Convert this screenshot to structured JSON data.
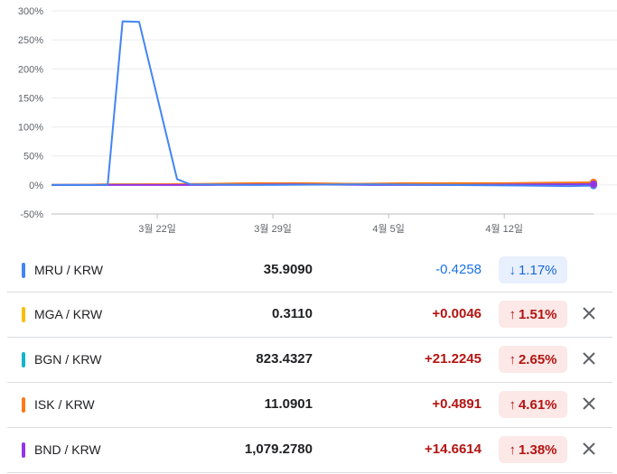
{
  "chart_data": {
    "type": "line",
    "y_ticks": [
      "300%",
      "250%",
      "200%",
      "150%",
      "100%",
      "50%",
      "0%",
      "-50%"
    ],
    "y_tick_values": [
      300,
      250,
      200,
      150,
      100,
      50,
      0,
      -50
    ],
    "x_ticks": [
      "3월 22일",
      "3월 29일",
      "4월 5일",
      "4월 12일"
    ],
    "x_tick_days": [
      22,
      29,
      36,
      43
    ],
    "x_range_days": [
      15.6,
      48.4
    ],
    "ylim": [
      -50,
      300
    ],
    "grid": true,
    "series": [
      {
        "color": "#4285f4",
        "x": [
          15.6,
          19.0,
          19.9,
          20.9,
          23.2,
          24.0,
          28.0,
          35.0,
          40.0,
          44.0,
          47.0,
          48.4
        ],
        "y": [
          0,
          0,
          282,
          281,
          10,
          1,
          0,
          1,
          0,
          -1,
          -2,
          -1.17
        ]
      },
      {
        "color": "#fbbc04",
        "x": [
          15.6,
          20,
          25,
          28,
          30,
          33,
          36,
          40,
          43,
          46,
          48.4
        ],
        "y": [
          0,
          1,
          1,
          2,
          2,
          2,
          2,
          3,
          2,
          3,
          1.51
        ]
      },
      {
        "color": "#12b5cb",
        "x": [
          15.6,
          20,
          25,
          30,
          35,
          40,
          45,
          48.4
        ],
        "y": [
          0,
          1,
          1,
          2,
          2,
          2,
          3,
          2.65
        ]
      },
      {
        "color": "#fa7b17",
        "x": [
          15.6,
          20,
          25,
          28,
          31,
          34,
          37,
          40,
          43,
          46,
          48.4
        ],
        "y": [
          0,
          1,
          2,
          3,
          3,
          2,
          3,
          3,
          3,
          4,
          4.61
        ]
      },
      {
        "color": "#9334e6",
        "x": [
          15.6,
          20,
          25,
          30,
          35,
          40,
          45,
          48.4
        ],
        "y": [
          0,
          0,
          0,
          1,
          0,
          0,
          1,
          1.38
        ]
      }
    ]
  },
  "rows": [
    {
      "pair": "MRU / KRW",
      "rate": "35.9090",
      "change": "-0.4258",
      "pct": "1.17%",
      "arrow": "↓",
      "dir": "down",
      "color": "#4285f4",
      "closable": false
    },
    {
      "pair": "MGA / KRW",
      "rate": "0.3110",
      "change": "+0.0046",
      "pct": "1.51%",
      "arrow": "↑",
      "dir": "up",
      "color": "#fbbc04",
      "closable": true
    },
    {
      "pair": "BGN / KRW",
      "rate": "823.4327",
      "change": "+21.2245",
      "pct": "2.65%",
      "arrow": "↑",
      "dir": "up",
      "color": "#12b5cb",
      "closable": true
    },
    {
      "pair": "ISK / KRW",
      "rate": "11.0901",
      "change": "+0.4891",
      "pct": "4.61%",
      "arrow": "↑",
      "dir": "up",
      "color": "#fa7b17",
      "closable": true
    },
    {
      "pair": "BND / KRW",
      "rate": "1,079.2780",
      "change": "+14.6614",
      "pct": "1.38%",
      "arrow": "↑",
      "dir": "up",
      "color": "#9334e6",
      "closable": true
    }
  ],
  "icons": {
    "close": "close-icon"
  }
}
